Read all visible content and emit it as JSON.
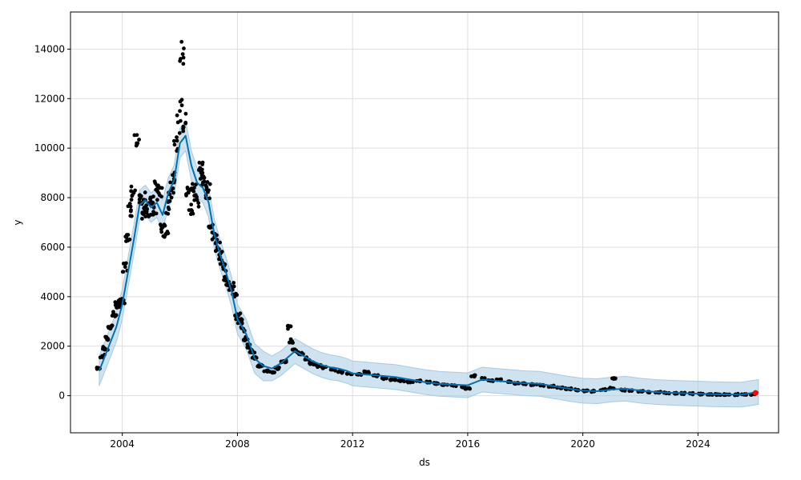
{
  "chart_data": {
    "type": "scatter",
    "title": "",
    "xlabel": "ds",
    "ylabel": "y",
    "xlim": [
      2002.2,
      2026.8
    ],
    "ylim": [
      -1500,
      15500
    ],
    "grid": true,
    "x_ticks": [
      2004,
      2008,
      2012,
      2016,
      2020,
      2024
    ],
    "x_tick_labels": [
      "2004",
      "2008",
      "2012",
      "2016",
      "2020",
      "2024"
    ],
    "y_ticks": [
      0,
      2000,
      4000,
      6000,
      8000,
      10000,
      12000,
      14000
    ],
    "y_tick_labels": [
      "0",
      "2000",
      "4000",
      "6000",
      "8000",
      "10000",
      "12000",
      "14000"
    ],
    "colors": {
      "observed": "#000000",
      "forecast": "#0072b2",
      "interval": "#a6cbe3",
      "latest": "#ff0000"
    },
    "series": [
      {
        "role": "forecast",
        "x": [
          2003.2,
          2003.5,
          2003.8,
          2004.0,
          2004.2,
          2004.4,
          2004.6,
          2004.8,
          2005.0,
          2005.2,
          2005.4,
          2005.6,
          2005.8,
          2006.0,
          2006.2,
          2006.4,
          2006.6,
          2006.8,
          2007.0,
          2007.2,
          2007.4,
          2007.6,
          2007.8,
          2008.0,
          2008.3,
          2008.6,
          2008.9,
          2009.2,
          2009.5,
          2009.8,
          2010.0,
          2010.3,
          2010.6,
          2010.9,
          2011.2,
          2011.5,
          2011.8,
          2012.0,
          2012.5,
          2013.0,
          2013.5,
          2014.0,
          2014.5,
          2015.0,
          2015.5,
          2016.0,
          2016.5,
          2017.0,
          2017.5,
          2018.0,
          2018.5,
          2019.0,
          2019.5,
          2020.0,
          2020.5,
          2021.0,
          2021.5,
          2022.0,
          2022.5,
          2023.0,
          2023.5,
          2024.0,
          2024.5,
          2025.0,
          2025.5,
          2026.1
        ],
        "y": [
          1000,
          1900,
          2800,
          3700,
          5000,
          6300,
          7700,
          7900,
          7600,
          7800,
          7300,
          8200,
          8700,
          10200,
          10500,
          9300,
          8600,
          8400,
          7800,
          6500,
          5700,
          5000,
          4200,
          3100,
          2500,
          1500,
          1200,
          1100,
          1300,
          1600,
          1800,
          1600,
          1400,
          1250,
          1150,
          1100,
          1000,
          900,
          850,
          800,
          750,
          650,
          550,
          480,
          450,
          420,
          650,
          600,
          550,
          500,
          480,
          380,
          280,
          200,
          180,
          250,
          280,
          200,
          150,
          120,
          100,
          80,
          60,
          50,
          40,
          150
        ]
      },
      {
        "role": "observed",
        "x": [
          2003.2,
          2003.3,
          2003.4,
          2003.5,
          2003.6,
          2003.7,
          2003.8,
          2003.9,
          2004.0,
          2004.1,
          2004.2,
          2004.3,
          2004.4,
          2004.5,
          2004.6,
          2004.7,
          2004.8,
          2004.9,
          2005.0,
          2005.1,
          2005.2,
          2005.3,
          2005.4,
          2005.5,
          2005.6,
          2005.7,
          2005.8,
          2005.9,
          2006.0,
          2006.1,
          2006.2,
          2006.3,
          2006.4,
          2006.5,
          2006.6,
          2006.7,
          2006.8,
          2006.9,
          2007.0,
          2007.1,
          2007.2,
          2007.3,
          2007.4,
          2007.5,
          2007.6,
          2007.7,
          2007.8,
          2007.9,
          2008.0,
          2008.1,
          2008.2,
          2008.3,
          2008.4,
          2008.5,
          2008.6,
          2008.8,
          2009.0,
          2009.2,
          2009.4,
          2009.6,
          2009.8,
          2009.9,
          2010.0,
          2010.2,
          2010.4,
          2010.6,
          2010.8,
          2011.0,
          2011.3,
          2011.6,
          2011.9,
          2012.2,
          2012.5,
          2012.8,
          2013.1,
          2013.4,
          2013.7,
          2014.0,
          2014.3,
          2014.6,
          2014.9,
          2015.2,
          2015.5,
          2015.8,
          2016.0,
          2016.2,
          2016.5,
          2016.8,
          2017.1,
          2017.4,
          2017.7,
          2018.0,
          2018.3,
          2018.6,
          2018.9,
          2019.2,
          2019.5,
          2019.8,
          2020.1,
          2020.4,
          2020.7,
          2021.0,
          2021.1,
          2021.4,
          2021.7,
          2022.0,
          2022.3,
          2022.6,
          2022.9,
          2023.2,
          2023.5,
          2023.8,
          2024.1,
          2024.4,
          2024.7,
          2025.0,
          2025.3,
          2025.6,
          2025.9
        ],
        "y": [
          1100,
          1600,
          1900,
          2300,
          2800,
          3300,
          3700,
          3600,
          3800,
          5200,
          6500,
          7500,
          8200,
          10200,
          7800,
          7400,
          7900,
          7300,
          8000,
          7600,
          8500,
          8100,
          6800,
          6500,
          7600,
          8300,
          8900,
          10300,
          11500,
          13800,
          11000,
          8200,
          7500,
          8400,
          7900,
          9200,
          8800,
          8500,
          8300,
          6800,
          6400,
          6000,
          5600,
          5200,
          4800,
          4600,
          4400,
          4000,
          3200,
          3000,
          2700,
          2300,
          2000,
          1800,
          1500,
          1200,
          1000,
          950,
          1100,
          1400,
          2800,
          2200,
          1800,
          1700,
          1500,
          1300,
          1200,
          1150,
          1050,
          950,
          900,
          850,
          950,
          800,
          700,
          650,
          600,
          550,
          600,
          550,
          500,
          450,
          400,
          350,
          300,
          800,
          700,
          600,
          650,
          550,
          500,
          480,
          450,
          420,
          380,
          320,
          280,
          230,
          200,
          180,
          250,
          300,
          700,
          220,
          200,
          180,
          150,
          130,
          110,
          100,
          90,
          80,
          70,
          60,
          55,
          50,
          45,
          40,
          60
        ]
      },
      {
        "role": "latest",
        "x": [
          2026.0
        ],
        "y": [
          110
        ]
      }
    ]
  }
}
